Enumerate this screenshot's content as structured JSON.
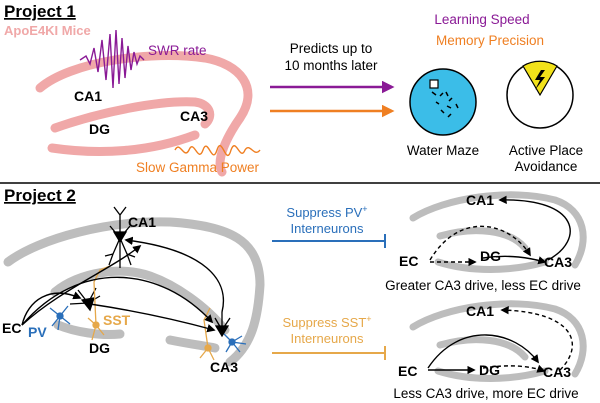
{
  "project1": {
    "title": "Project 1",
    "mouse_label": "ApoE4KI Mice",
    "swr_label": "SWR rate",
    "slow_gamma_label": "Slow Gamma Power",
    "ca1": "CA1",
    "ca3": "CA3",
    "dg": "DG",
    "predicts_line1": "Predicts up to",
    "predicts_line2": "10 months later",
    "learning_speed": "Learning Speed",
    "memory_precision": "Memory Precision",
    "water_maze": "Water Maze",
    "active_place_line1": "Active Place",
    "active_place_line2": "Avoidance"
  },
  "project2": {
    "title": "Project 2",
    "ca1": "CA1",
    "ca3": "CA3",
    "dg": "DG",
    "ec": "EC",
    "pv": "PV",
    "sst": "SST",
    "suppress_pv_line1": "Suppress PV",
    "suppress_pv_sup": "+",
    "suppress_pv_line2": "Interneurons",
    "suppress_sst_line1": "Suppress SST",
    "suppress_sst_sup": "+",
    "suppress_sst_line2": "Interneurons",
    "top_ca1": "CA1",
    "top_ca3": "CA3",
    "top_dg": "DG",
    "top_ec": "EC",
    "top_caption": "Greater CA3 drive, less EC drive",
    "bot_ca1": "CA1",
    "bot_ca3": "CA3",
    "bot_dg": "DG",
    "bot_ec": "EC",
    "bot_caption": "Less CA3 drive, more EC drive"
  },
  "colors": {
    "pink": "#f0a8a8",
    "purple": "#8a1a96",
    "orange": "#ef7f22",
    "blue": "#2a6fba",
    "gold": "#e6a84a",
    "gray": "#bdbdbd",
    "water": "#3bbde8",
    "yellow": "#f2e21a"
  }
}
